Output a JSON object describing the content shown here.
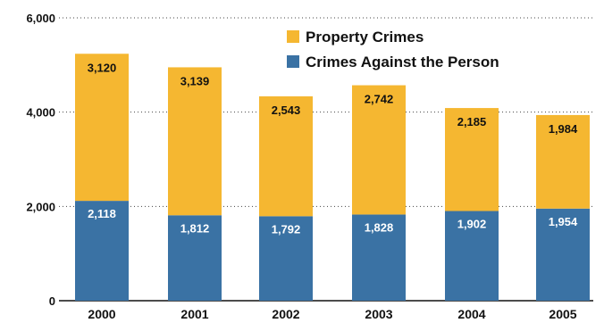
{
  "chart_data": {
    "type": "bar",
    "stacked": true,
    "categories": [
      "2000",
      "2001",
      "2002",
      "2003",
      "2004",
      "2005"
    ],
    "series": [
      {
        "name": "Crimes Against the Person",
        "values": [
          2118,
          1812,
          1792,
          1828,
          1902,
          1954
        ],
        "color": "#3a72a4"
      },
      {
        "name": "Property Crimes",
        "values": [
          3120,
          3139,
          2543,
          2742,
          2185,
          1984
        ],
        "color": "#f5b731"
      }
    ],
    "data_labels": {
      "Crimes Against the Person": [
        "2,118",
        "1,812",
        "1,792",
        "1,828",
        "1,902",
        "1,954"
      ],
      "Property Crimes": [
        "3,120",
        "3,139",
        "2,543",
        "2,742",
        "2,185",
        "1,984"
      ]
    },
    "yticks": [
      "0",
      "2,000",
      "4,000",
      "6,000"
    ],
    "ytick_values": [
      0,
      2000,
      4000,
      6000
    ],
    "ylim": [
      0,
      6000
    ],
    "grid": "dotted horizontal",
    "legend_position": "top-right",
    "title": "",
    "xlabel": "",
    "ylabel": ""
  }
}
